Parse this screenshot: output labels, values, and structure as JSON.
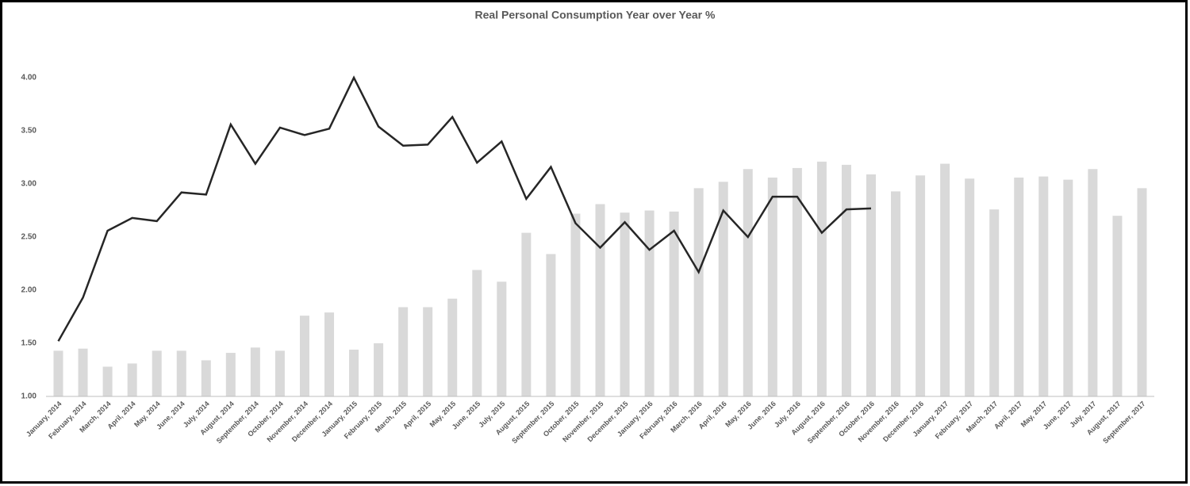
{
  "chart_data": {
    "type": "bar-line",
    "title": "Real Personal Consumption Year over Year %",
    "categories": [
      "January, 2014",
      "February, 2014",
      "March, 2014",
      "April, 2014",
      "May, 2014",
      "June, 2014",
      "July, 2014",
      "August, 2014",
      "September, 2014",
      "October, 2014",
      "November, 2014",
      "December, 2014",
      "January, 2015",
      "February, 2015",
      "March, 2015",
      "April, 2015",
      "May, 2015",
      "June, 2015",
      "July, 2015",
      "August, 2015",
      "September, 2015",
      "October, 2015",
      "November, 2015",
      "December, 2015",
      "January, 2016",
      "February, 2016",
      "March, 2016",
      "April, 2016",
      "May, 2016",
      "June, 2016",
      "July, 2016",
      "August, 2016",
      "September, 2016",
      "October, 2016",
      "November, 2016",
      "December, 2016",
      "January, 2017",
      "February, 2017",
      "March, 2017",
      "April, 2017",
      "May, 2017",
      "June, 2017",
      "July, 2017",
      "August, 2017",
      "September, 2017"
    ],
    "series": [
      {
        "type": "bar",
        "color": "#d9d9d9",
        "values": [
          1.43,
          1.45,
          1.28,
          1.31,
          1.43,
          1.43,
          1.34,
          1.41,
          1.46,
          1.43,
          1.76,
          1.79,
          1.44,
          1.5,
          1.84,
          1.84,
          1.92,
          2.19,
          2.08,
          2.54,
          2.34,
          2.72,
          2.81,
          2.73,
          2.75,
          2.74,
          2.96,
          3.02,
          3.14,
          3.06,
          3.15,
          3.21,
          3.18,
          3.09,
          2.93,
          3.08,
          3.19,
          3.05,
          2.76,
          3.06,
          3.07,
          3.04,
          3.14,
          2.7,
          2.96
        ]
      },
      {
        "type": "line",
        "color": "#262626",
        "values": [
          1.52,
          1.93,
          2.56,
          2.68,
          2.65,
          2.92,
          2.9,
          3.56,
          3.19,
          3.53,
          3.46,
          3.52,
          4.0,
          3.54,
          3.36,
          3.37,
          3.63,
          3.2,
          3.4,
          2.86,
          3.16,
          2.63,
          2.4,
          2.64,
          2.38,
          2.56,
          2.17,
          2.75,
          2.5,
          2.88,
          2.88,
          2.54,
          2.76,
          2.77,
          null,
          null,
          null,
          null,
          null,
          null,
          null,
          null,
          null,
          null,
          null
        ]
      }
    ],
    "ylim": [
      1,
      4.25
    ],
    "yticks": [
      {
        "value": 1,
        "label": "1.00"
      },
      {
        "value": 1.5,
        "label": "1.50"
      },
      {
        "value": 2,
        "label": "2.00"
      },
      {
        "value": 2.5,
        "label": "2.50"
      },
      {
        "value": 3,
        "label": "3.00"
      },
      {
        "value": 3.5,
        "label": "3.50"
      },
      {
        "value": 4,
        "label": "4.00"
      }
    ],
    "grid": false
  }
}
